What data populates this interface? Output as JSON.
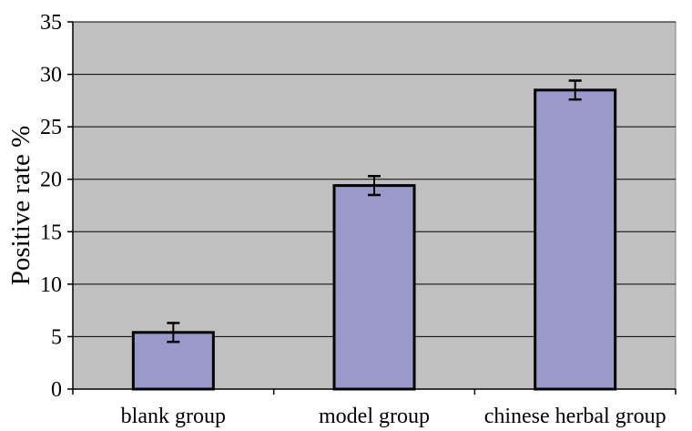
{
  "chart_data": {
    "type": "bar",
    "title": "",
    "xlabel": "",
    "ylabel": "Positive rate %",
    "ylim": [
      0,
      35
    ],
    "yticks": [
      0,
      5,
      10,
      15,
      20,
      25,
      30,
      35
    ],
    "grid": true,
    "legend": "none",
    "categories": [
      "blank group",
      "model group",
      "chinese herbal group"
    ],
    "values": [
      5.4,
      19.4,
      28.5
    ],
    "errors": [
      0.9,
      0.9,
      0.9
    ],
    "colors": {
      "plot_background": "#c0c0c0",
      "bar_fill": "#9999cc",
      "bar_stroke": "#000000",
      "gridline": "#000000"
    }
  }
}
